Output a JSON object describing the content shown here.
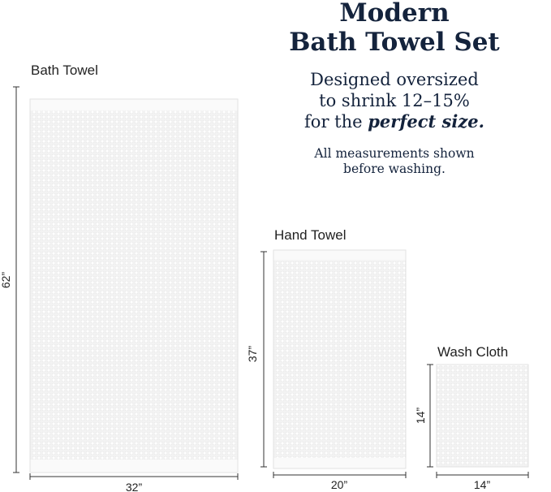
{
  "header": {
    "title_lines": [
      "Modern",
      "Bath Towel Set"
    ],
    "tagline": [
      "Designed oversized",
      "to shrink 12–15%"
    ],
    "tagline_end": {
      "text": "for the",
      "emphasis": "perfect size."
    },
    "note_lines": [
      "All measurements shown",
      "before washing."
    ]
  },
  "towels": [
    {
      "name": "Bath Towel",
      "width": "32”",
      "height": "62”"
    },
    {
      "name": "Hand Towel",
      "width": "20”",
      "height": "37”"
    },
    {
      "name": "Wash Cloth",
      "width": "14”",
      "height": "14”"
    }
  ]
}
